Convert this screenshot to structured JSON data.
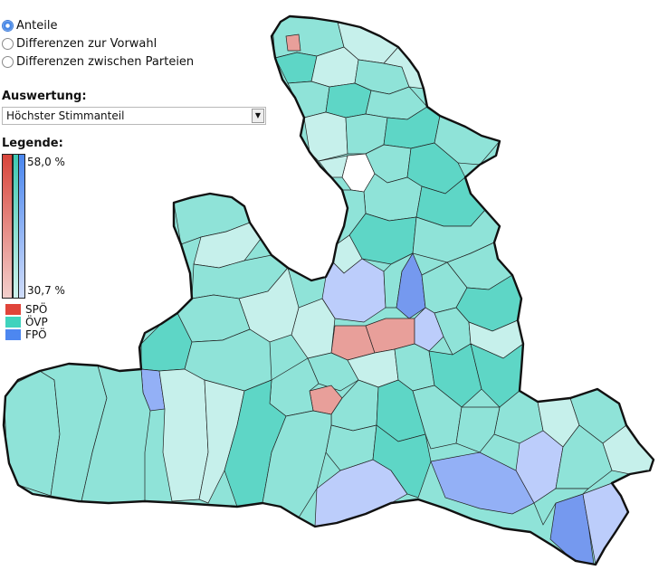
{
  "mode": {
    "options": [
      {
        "label": "Anteile",
        "checked": true
      },
      {
        "label": "Differenzen zur Vorwahl",
        "checked": false
      },
      {
        "label": "Differenzen zwischen Parteien",
        "checked": false
      }
    ]
  },
  "evaluation": {
    "label": "Auswertung:",
    "selected": "Höchster Stimmanteil"
  },
  "legend": {
    "label": "Legende:",
    "max": "58,0 %",
    "min": "30,7 %",
    "parties": [
      {
        "name": "SPÖ",
        "color": "#e0443a"
      },
      {
        "name": "ÖVP",
        "color": "#3fd3bd"
      },
      {
        "name": "FPÖ",
        "color": "#4d87f0"
      }
    ]
  },
  "colors": {
    "ovp_light": "#c6f0eb",
    "ovp_mid": "#8fe3d8",
    "ovp_dark": "#5ed6c6",
    "spo_light": "#f0b5b1",
    "spo_mid": "#e89f9a",
    "fpo_light": "#bccdfb",
    "fpo_mid": "#93b0f6",
    "fpo_dark": "#7599ef",
    "unassigned": "#ffffff"
  }
}
